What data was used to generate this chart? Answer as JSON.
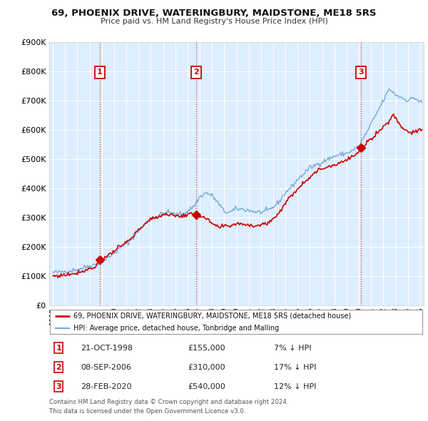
{
  "title": "69, PHOENIX DRIVE, WATERINGBURY, MAIDSTONE, ME18 5RS",
  "subtitle": "Price paid vs. HM Land Registry's House Price Index (HPI)",
  "sale_label": "69, PHOENIX DRIVE, WATERINGBURY, MAIDSTONE, ME18 5RS (detached house)",
  "hpi_label": "HPI: Average price, detached house, Tonbridge and Malling",
  "sales": [
    {
      "num": 1,
      "date_str": "21-OCT-1998",
      "date_x": 1998.81,
      "price": 155000,
      "pct": "7% ↓ HPI"
    },
    {
      "num": 2,
      "date_str": "08-SEP-2006",
      "date_x": 2006.69,
      "price": 310000,
      "pct": "17% ↓ HPI"
    },
    {
      "num": 3,
      "date_str": "28-FEB-2020",
      "date_x": 2020.16,
      "price": 540000,
      "pct": "12% ↓ HPI"
    }
  ],
  "sale_color": "#cc0000",
  "hpi_color": "#7aa8d4",
  "chart_bg": "#ddeeff",
  "vline_color": "#dd3333",
  "annotation_box_color": "#cc0000",
  "footer": "Contains HM Land Registry data © Crown copyright and database right 2024.\nThis data is licensed under the Open Government Licence v3.0.",
  "ylim": [
    0,
    900000
  ],
  "yticks": [
    0,
    100000,
    200000,
    300000,
    400000,
    500000,
    600000,
    700000,
    800000,
    900000
  ],
  "xlim_start": 1994.7,
  "xlim_end": 2025.3
}
